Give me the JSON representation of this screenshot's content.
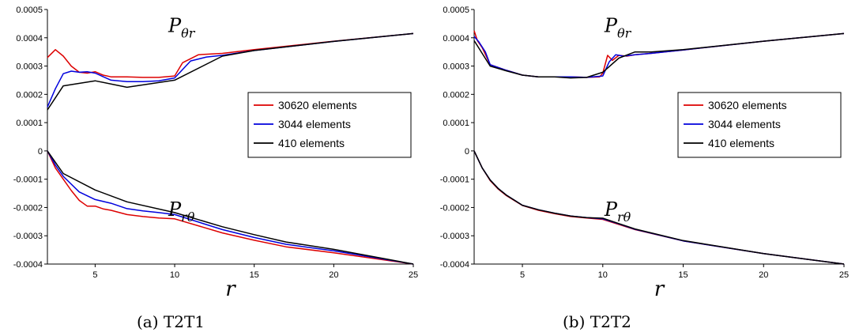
{
  "chart_data": [
    {
      "type": "line",
      "caption": "(a) T2T1",
      "xlabel": "r",
      "xlim": [
        2,
        25
      ],
      "ylim": [
        -0.0004,
        0.0005
      ],
      "xticks": [
        "5",
        "10",
        "15",
        "20",
        "25"
      ],
      "yticks": [
        "0.0005",
        "0.0004",
        "0.0003",
        "0.0002",
        "0.0001",
        "0",
        "-0.0001",
        "-0.0002",
        "-0.0003",
        "-0.0004"
      ],
      "annotations": [
        {
          "label": "P",
          "sub": "θr",
          "x": 9.6,
          "y": 0.00042
        },
        {
          "label": "P",
          "sub": "rθ",
          "x": 9.6,
          "y": -0.00023
        }
      ],
      "legend": "right",
      "series": [
        {
          "name": "30620 elements",
          "color": "#dd0000",
          "upper": {
            "x": [
              2.0,
              2.5,
              3.0,
              3.5,
              4.0,
              4.5,
              5.0,
              5.5,
              6.0,
              7.0,
              8.0,
              9.0,
              10.0,
              10.5,
              11.5,
              13.0,
              15.0,
              20.0,
              25.0
            ],
            "y": [
              0.00033,
              0.000358,
              0.000335,
              0.0003,
              0.000278,
              0.000275,
              0.00028,
              0.000268,
              0.000262,
              0.000262,
              0.00026,
              0.00026,
              0.000265,
              0.000312,
              0.00034,
              0.000345,
              0.000358,
              0.000388,
              0.000415
            ]
          },
          "lower": {
            "x": [
              2.0,
              2.5,
              3.0,
              3.5,
              4.0,
              4.5,
              5.0,
              5.5,
              6.0,
              7.0,
              8.0,
              9.0,
              10.0,
              13.0,
              15.0,
              17.0,
              20.0,
              25.0
            ],
            "y": [
              0.0,
              -6e-05,
              -0.0001,
              -0.00014,
              -0.000175,
              -0.000195,
              -0.000195,
              -0.000205,
              -0.00021,
              -0.000225,
              -0.000232,
              -0.000237,
              -0.00024,
              -0.00029,
              -0.000316,
              -0.000339,
              -0.00036,
              -0.0004
            ]
          }
        },
        {
          "name": "3044 elements",
          "color": "#0000dd",
          "upper": {
            "x": [
              2.0,
              2.5,
              3.0,
              3.5,
              4.0,
              4.5,
              5.0,
              6.0,
              7.0,
              8.0,
              9.0,
              10.0,
              11.0,
              12.0,
              13.0,
              15.0,
              20.0,
              25.0
            ],
            "y": [
              0.000155,
              0.00022,
              0.000273,
              0.000282,
              0.000278,
              0.00028,
              0.000275,
              0.00025,
              0.000245,
              0.000245,
              0.000248,
              0.000258,
              0.000318,
              0.000332,
              0.000338,
              0.000355,
              0.000387,
              0.000415
            ]
          },
          "lower": {
            "x": [
              2.0,
              2.5,
              3.0,
              4.0,
              5.0,
              6.0,
              7.0,
              8.0,
              9.0,
              10.0,
              13.0,
              15.0,
              17.0,
              20.0,
              25.0
            ],
            "y": [
              0.0,
              -5e-05,
              -9e-05,
              -0.000145,
              -0.000172,
              -0.000185,
              -0.000204,
              -0.000212,
              -0.000218,
              -0.000225,
              -0.000278,
              -0.000306,
              -0.00033,
              -0.000353,
              -0.0004
            ]
          }
        },
        {
          "name": "410 elements",
          "color": "#000000",
          "upper": {
            "x": [
              2.0,
              3.0,
              5.0,
              7.0,
              10.0,
              13.0,
              15.0,
              20.0,
              25.0
            ],
            "y": [
              0.000145,
              0.00023,
              0.000248,
              0.000225,
              0.00025,
              0.000335,
              0.000355,
              0.000387,
              0.000415
            ]
          },
          "lower": {
            "x": [
              2.0,
              3.0,
              5.0,
              7.0,
              10.0,
              13.0,
              15.0,
              17.0,
              20.0,
              25.0
            ],
            "y": [
              0.0,
              -8e-05,
              -0.000138,
              -0.00018,
              -0.000218,
              -0.000268,
              -0.000296,
              -0.000322,
              -0.000348,
              -0.0004
            ]
          }
        }
      ]
    },
    {
      "type": "line",
      "caption": "(b) T2T2",
      "xlabel": "r",
      "xlim": [
        2,
        25
      ],
      "ylim": [
        -0.0004,
        0.0005
      ],
      "xticks": [
        "5",
        "10",
        "15",
        "20",
        "25"
      ],
      "yticks": [
        "0.0005",
        "0.0004",
        "0.0003",
        "0.0002",
        "0.0001",
        "0",
        "-0.0001",
        "-0.0002",
        "-0.0003",
        "-0.0004"
      ],
      "annotations": [
        {
          "label": "P",
          "sub": "θr",
          "x": 10.1,
          "y": 0.00042
        },
        {
          "label": "P",
          "sub": "rθ",
          "x": 10.1,
          "y": -0.00023
        }
      ],
      "legend": "right",
      "series": [
        {
          "name": "30620 elements",
          "color": "#dd0000",
          "upper": {
            "x": [
              2.0,
              2.2,
              2.5,
              3.0,
              4.0,
              5.0,
              6.0,
              7.0,
              8.0,
              9.0,
              9.8,
              10.0,
              10.3,
              10.6,
              11.0,
              11.5,
              12.0,
              13.0,
              15.0,
              20.0,
              25.0
            ],
            "y": [
              0.000425,
              0.00039,
              0.000365,
              0.000305,
              0.000285,
              0.000268,
              0.000262,
              0.000262,
              0.000262,
              0.00026,
              0.000262,
              0.000275,
              0.000338,
              0.00032,
              0.000338,
              0.000335,
              0.00034,
              0.000345,
              0.000357,
              0.000388,
              0.000415
            ]
          },
          "lower": {
            "x": [
              2.0,
              2.5,
              3.0,
              3.5,
              4.0,
              5.0,
              6.0,
              7.0,
              8.0,
              9.0,
              10.0,
              11.0,
              12.0,
              15.0,
              20.0,
              25.0
            ],
            "y": [
              0.0,
              -6e-05,
              -0.000105,
              -0.000135,
              -0.000158,
              -0.000193,
              -0.00021,
              -0.000222,
              -0.000232,
              -0.000237,
              -0.000242,
              -0.00026,
              -0.000278,
              -0.000318,
              -0.000363,
              -0.0004
            ]
          }
        },
        {
          "name": "3044 elements",
          "color": "#0000dd",
          "upper": {
            "x": [
              2.0,
              2.3,
              2.7,
              3.0,
              4.0,
              5.0,
              6.0,
              7.0,
              8.0,
              9.0,
              10.0,
              10.4,
              10.8,
              11.3,
              12.0,
              13.0,
              15.0,
              20.0,
              25.0
            ],
            "y": [
              0.000405,
              0.000385,
              0.00035,
              0.000305,
              0.000285,
              0.000268,
              0.000262,
              0.000262,
              0.000262,
              0.00026,
              0.000265,
              0.000315,
              0.00034,
              0.000335,
              0.00034,
              0.000345,
              0.000357,
              0.000388,
              0.000415
            ]
          },
          "lower": {
            "x": [
              2.0,
              2.5,
              3.0,
              3.5,
              4.0,
              5.0,
              6.0,
              7.0,
              8.0,
              9.0,
              10.0,
              11.0,
              12.0,
              15.0,
              20.0,
              25.0
            ],
            "y": [
              0.0,
              -6e-05,
              -0.000103,
              -0.000133,
              -0.000156,
              -0.000192,
              -0.000208,
              -0.00022,
              -0.00023,
              -0.000236,
              -0.00024,
              -0.000258,
              -0.000277,
              -0.000318,
              -0.000363,
              -0.0004
            ]
          }
        },
        {
          "name": "410 elements",
          "color": "#000000",
          "upper": {
            "x": [
              2.0,
              3.0,
              4.0,
              5.0,
              6.0,
              7.0,
              8.0,
              9.0,
              10.0,
              11.0,
              12.0,
              13.0,
              15.0,
              20.0,
              25.0
            ],
            "y": [
              0.00039,
              0.0003,
              0.000283,
              0.000268,
              0.000262,
              0.000262,
              0.000258,
              0.00026,
              0.000278,
              0.000328,
              0.00035,
              0.00035,
              0.000358,
              0.000388,
              0.000415
            ]
          },
          "lower": {
            "x": [
              2.0,
              2.5,
              3.0,
              3.5,
              4.0,
              5.0,
              6.0,
              7.0,
              8.0,
              9.0,
              10.0,
              11.0,
              12.0,
              15.0,
              20.0,
              25.0
            ],
            "y": [
              0.0,
              -6e-05,
              -0.000103,
              -0.000133,
              -0.000156,
              -0.000192,
              -0.000208,
              -0.00022,
              -0.00023,
              -0.000236,
              -0.000238,
              -0.000257,
              -0.000276,
              -0.000317,
              -0.000363,
              -0.0004
            ]
          }
        }
      ]
    }
  ]
}
